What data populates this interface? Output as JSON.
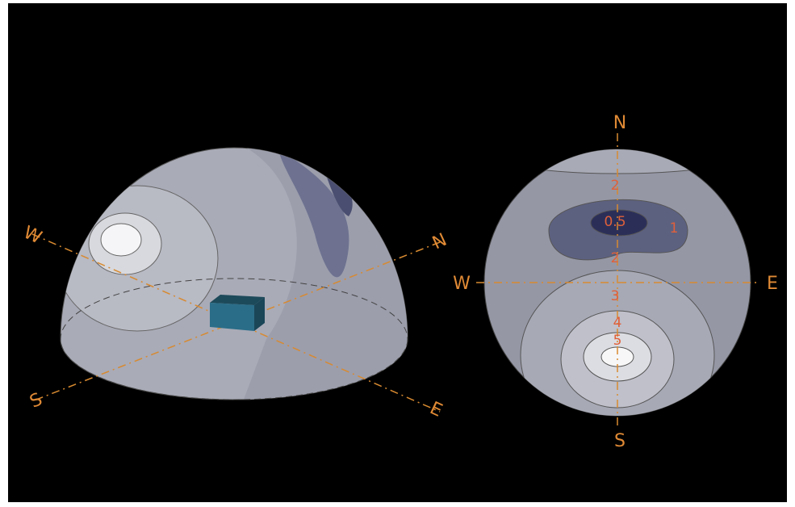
{
  "left_dome": {
    "directions": [
      "W",
      "N",
      "S",
      "E"
    ]
  },
  "right_disk": {
    "directions": [
      "N",
      "W",
      "E",
      "S"
    ],
    "contour_labels": [
      "2",
      "0.5",
      "1",
      "2",
      "3",
      "4",
      "5"
    ]
  }
}
